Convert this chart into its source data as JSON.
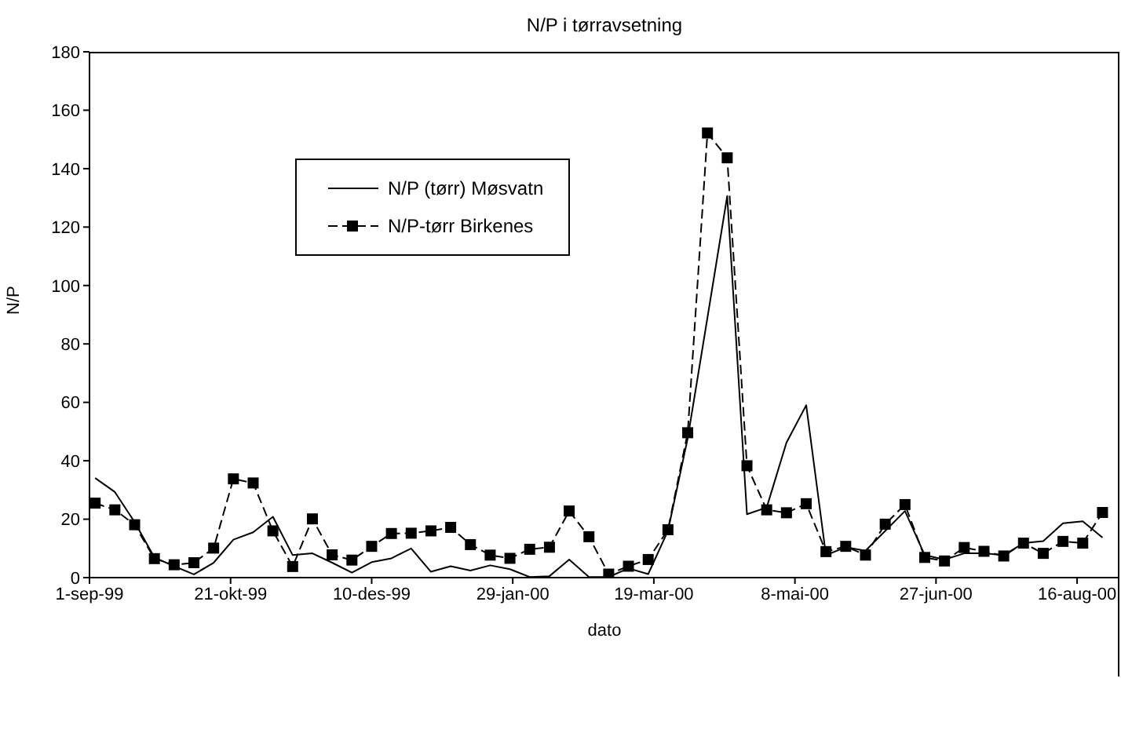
{
  "chart_data": {
    "type": "line",
    "title": "N/P i tørravsetning",
    "xlabel": "dato",
    "ylabel": "N/P",
    "x": [
      "1999-09-03",
      "1999-09-10",
      "1999-09-17",
      "1999-09-24",
      "1999-10-01",
      "1999-10-08",
      "1999-10-15",
      "1999-10-22",
      "1999-10-29",
      "1999-11-05",
      "1999-11-12",
      "1999-11-19",
      "1999-11-26",
      "1999-12-03",
      "1999-12-10",
      "1999-12-17",
      "1999-12-24",
      "1999-12-31",
      "2000-01-07",
      "2000-01-14",
      "2000-01-21",
      "2000-01-28",
      "2000-02-04",
      "2000-02-11",
      "2000-02-18",
      "2000-02-25",
      "2000-03-03",
      "2000-03-10",
      "2000-03-17",
      "2000-03-24",
      "2000-03-31",
      "2000-04-07",
      "2000-04-14",
      "2000-04-21",
      "2000-04-28",
      "2000-05-05",
      "2000-05-12",
      "2000-05-19",
      "2000-05-26",
      "2000-06-02",
      "2000-06-09",
      "2000-06-16",
      "2000-06-23",
      "2000-06-30",
      "2000-07-07",
      "2000-07-14",
      "2000-07-21",
      "2000-07-28",
      "2000-08-04",
      "2000-08-11",
      "2000-08-18",
      "2000-08-25"
    ],
    "series": [
      {
        "name": "N/P (tørr) Møsvatn",
        "color": "#000000",
        "line_style": "solid",
        "marker": "none",
        "values": [
          34.1,
          29.3,
          19,
          6.9,
          3.9,
          1.1,
          5.1,
          13,
          15.5,
          20.8,
          7.7,
          8.3,
          5.1,
          1.7,
          5.3,
          6.6,
          10,
          2,
          3.9,
          2.4,
          4.2,
          2.9,
          0.2,
          0.5,
          6.2,
          0.2,
          0.2,
          3.2,
          1.2,
          16,
          47.7,
          89,
          130.6,
          21.7,
          24,
          46.2,
          59,
          7.7,
          10.4,
          9.2,
          16,
          22.8,
          7.7,
          6.2,
          8.3,
          8.3,
          7.7,
          11.8,
          12.5,
          18.6,
          19.3,
          13.7
        ]
      },
      {
        "name": "N/P-tørr Birkenes",
        "color": "#000000",
        "line_style": "dashed",
        "marker": "square",
        "values": [
          25.5,
          23.2,
          18.1,
          6.5,
          4.4,
          5.1,
          10.1,
          33.8,
          32.4,
          16,
          3.8,
          20.1,
          7.8,
          6,
          10.7,
          15.1,
          15.2,
          16,
          17.2,
          11.3,
          7.7,
          6.6,
          9.7,
          10.4,
          22.8,
          14,
          1.2,
          3.9,
          6.2,
          16.4,
          49.6,
          152.2,
          143.7,
          38.3,
          23.2,
          22.2,
          25.3,
          8.9,
          10.7,
          7.7,
          18.3,
          25,
          6.9,
          5.7,
          10.3,
          9,
          7.4,
          11.8,
          8.3,
          12.4,
          11.8,
          22.3
        ]
      }
    ],
    "xlim": [
      "1999-09-01",
      "2000-08-31"
    ],
    "xticks": [
      {
        "value": "1999-09-01",
        "label": "1-sep-99"
      },
      {
        "value": "1999-10-21",
        "label": "21-okt-99"
      },
      {
        "value": "1999-12-10",
        "label": "10-des-99"
      },
      {
        "value": "2000-01-29",
        "label": "29-jan-00"
      },
      {
        "value": "2000-03-19",
        "label": "19-mar-00"
      },
      {
        "value": "2000-05-08",
        "label": "8-mai-00"
      },
      {
        "value": "2000-06-27",
        "label": "27-jun-00"
      },
      {
        "value": "2000-08-16",
        "label": "16-aug-00"
      }
    ],
    "ylim": [
      0,
      180
    ],
    "yticks": [
      0,
      20,
      40,
      60,
      80,
      100,
      120,
      140,
      160,
      180
    ],
    "grid": false,
    "legend": "top left"
  }
}
